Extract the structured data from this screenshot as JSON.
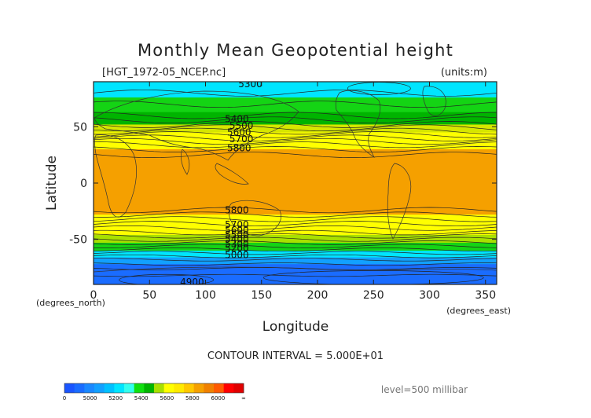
{
  "chart_data": {
    "type": "heatmap",
    "title": "Monthly Mean Geopotential height",
    "file_label": "[HGT_1972-05_NCEP.nc]",
    "units_label": "(units:m)",
    "xlabel": "Longitude",
    "ylabel": "Latitude",
    "x_unit_label": "(degrees_east)",
    "y_unit_label": "(degrees_north)",
    "xlim": [
      0,
      360
    ],
    "ylim": [
      -90,
      90
    ],
    "x_ticks": [
      0,
      50,
      100,
      150,
      200,
      250,
      300,
      350
    ],
    "y_ticks": [
      50,
      0,
      -50
    ],
    "contour_interval_text": "CONTOUR INTERVAL = 5.000E+01",
    "level_text": "level=500 millibar",
    "contour_labels": [
      {
        "value": "5300",
        "lon": 140,
        "lat": 88
      },
      {
        "value": "5400",
        "lon": 128,
        "lat": 57
      },
      {
        "value": "5500",
        "lon": 132,
        "lat": 51
      },
      {
        "value": "5600",
        "lon": 130,
        "lat": 45
      },
      {
        "value": "5700",
        "lon": 132,
        "lat": 39
      },
      {
        "value": "5800",
        "lon": 130,
        "lat": 31
      },
      {
        "value": "5800",
        "lon": 128,
        "lat": -24
      },
      {
        "value": "5700",
        "lon": 128,
        "lat": -37
      },
      {
        "value": "5600",
        "lon": 128,
        "lat": -42
      },
      {
        "value": "5500",
        "lon": 128,
        "lat": -46
      },
      {
        "value": "5400",
        "lon": 128,
        "lat": -50
      },
      {
        "value": "5300",
        "lon": 128,
        "lat": -54
      },
      {
        "value": "5200",
        "lon": 128,
        "lat": -58
      },
      {
        "value": "5000",
        "lon": 128,
        "lat": -64
      },
      {
        "value": "4900",
        "lon": 88,
        "lat": -88
      }
    ],
    "color_bands": [
      {
        "lat_top": 90,
        "lat_bot": 76,
        "color": "#00e5ff"
      },
      {
        "lat_top": 76,
        "lat_bot": 63,
        "color": "#14d414"
      },
      {
        "lat_top": 63,
        "lat_bot": 52,
        "color": "#00b400"
      },
      {
        "lat_top": 52,
        "lat_bot": 45,
        "color": "#d6e600"
      },
      {
        "lat_top": 45,
        "lat_bot": 30,
        "color": "#ffff00"
      },
      {
        "lat_top": 30,
        "lat_bot": -28,
        "color": "#f5a000"
      },
      {
        "lat_top": -28,
        "lat_bot": -46,
        "color": "#ffff00"
      },
      {
        "lat_top": -46,
        "lat_bot": -53,
        "color": "#a8e000"
      },
      {
        "lat_top": -53,
        "lat_bot": -60,
        "color": "#14d414"
      },
      {
        "lat_top": -60,
        "lat_bot": -66,
        "color": "#00e5ff"
      },
      {
        "lat_top": -66,
        "lat_bot": -72,
        "color": "#12a0ff"
      },
      {
        "lat_top": -72,
        "lat_bot": -90,
        "color": "#1a6cff"
      }
    ],
    "colorbar": {
      "ticks": [
        "0",
        "5000",
        "5200",
        "5400",
        "5600",
        "5800",
        "6000",
        "∞"
      ],
      "colors": [
        "#1a55ff",
        "#1a6cff",
        "#1a88ff",
        "#12a0ff",
        "#00c0ff",
        "#00e5ff",
        "#33ffee",
        "#10e010",
        "#00b400",
        "#a8e000",
        "#ffff00",
        "#ffea00",
        "#ffc800",
        "#f5a000",
        "#f08000",
        "#ff5a00",
        "#ff0000",
        "#e00000"
      ]
    }
  }
}
